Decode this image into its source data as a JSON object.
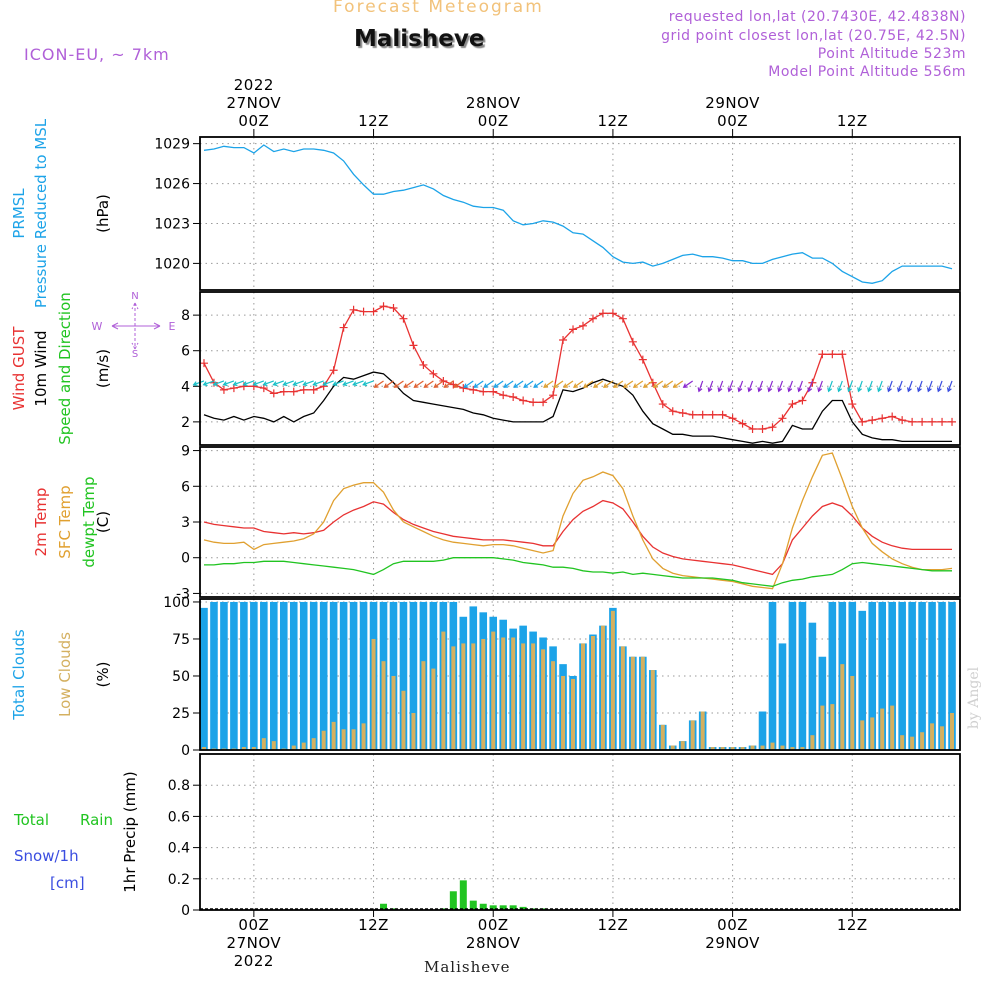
{
  "header": {
    "product": "Forecast Meteogram",
    "location": "Malisheve",
    "model": "ICON-EU, ~ 7km",
    "requested": "requested lon,lat (20.7430E, 42.4838N)",
    "grid_point": "grid point closest lon,lat (20.75E, 42.5N)",
    "point_altitude": "Point Altitude 523m",
    "model_altitude": "Model Point Altitude 556m",
    "credit": "by Angel",
    "footer_location": "Malisheve"
  },
  "time_axis": {
    "top_labels": [
      {
        "hour": 0,
        "lines": [
          "2022",
          "27NOV",
          "00Z"
        ]
      },
      {
        "hour": 12,
        "lines": [
          "12Z"
        ]
      },
      {
        "hour": 24,
        "lines": [
          "28NOV",
          "00Z"
        ]
      },
      {
        "hour": 36,
        "lines": [
          "12Z"
        ]
      },
      {
        "hour": 48,
        "lines": [
          "29NOV",
          "00Z"
        ]
      },
      {
        "hour": 60,
        "lines": [
          "12Z"
        ]
      }
    ],
    "bottom_labels": [
      {
        "hour": 0,
        "lines": [
          "00Z",
          "27NOV",
          "2022"
        ]
      },
      {
        "hour": 12,
        "lines": [
          "12Z"
        ]
      },
      {
        "hour": 24,
        "lines": [
          "00Z",
          "28NOV"
        ]
      },
      {
        "hour": 36,
        "lines": [
          "12Z"
        ]
      },
      {
        "hour": 48,
        "lines": [
          "00Z",
          "29NOV"
        ]
      },
      {
        "hour": 60,
        "lines": [
          "12Z"
        ]
      }
    ],
    "range_hours": [
      -5.4,
      70.8
    ]
  },
  "chart_data": [
    {
      "panel": "pressure",
      "type": "line",
      "side_labels": [
        "PRMSL",
        "Pressure Reduced to MSL"
      ],
      "ylabel": "(hPa)",
      "ylim": [
        1018,
        1029.5
      ],
      "yticks": [
        1020,
        1023,
        1026,
        1029
      ],
      "grid": true,
      "x": [
        -5,
        -4,
        -3,
        -2,
        -1,
        0,
        1,
        2,
        3,
        4,
        5,
        6,
        7,
        8,
        9,
        10,
        11,
        12,
        13,
        14,
        15,
        16,
        17,
        18,
        19,
        20,
        21,
        22,
        23,
        24,
        25,
        26,
        27,
        28,
        29,
        30,
        31,
        32,
        33,
        34,
        35,
        36,
        37,
        38,
        39,
        40,
        41,
        42,
        43,
        44,
        45,
        46,
        47,
        48,
        49,
        50,
        51,
        52,
        53,
        54,
        55,
        56,
        57,
        58,
        59,
        60,
        61,
        62,
        63,
        64,
        65,
        66,
        67,
        68,
        69,
        70
      ],
      "series": [
        {
          "color": "#1ca3e8",
          "values": [
            1028.5,
            1028.6,
            1028.8,
            1028.7,
            1028.7,
            1028.3,
            1028.9,
            1028.4,
            1028.6,
            1028.4,
            1028.6,
            1028.6,
            1028.5,
            1028.3,
            1027.7,
            1026.7,
            1025.9,
            1025.2,
            1025.2,
            1025.4,
            1025.5,
            1025.7,
            1025.9,
            1025.6,
            1025.1,
            1024.8,
            1024.6,
            1024.3,
            1024.2,
            1024.2,
            1024.0,
            1023.2,
            1022.9,
            1023.0,
            1023.2,
            1023.1,
            1022.8,
            1022.3,
            1022.2,
            1021.7,
            1021.2,
            1020.5,
            1020.1,
            1020.0,
            1020.1,
            1019.8,
            1020.0,
            1020.3,
            1020.6,
            1020.7,
            1020.5,
            1020.5,
            1020.4,
            1020.2,
            1020.2,
            1020.0,
            1020.0,
            1020.3,
            1020.5,
            1020.7,
            1020.8,
            1020.4,
            1020.4,
            1020.0,
            1019.4,
            1019.0,
            1018.6,
            1018.5,
            1018.7,
            1019.4,
            1019.8,
            1019.8,
            1019.8,
            1019.8,
            1019.8,
            1019.6
          ]
        }
      ]
    },
    {
      "panel": "wind",
      "type": "line",
      "side_labels": [
        "Wind GUST",
        "10m Wind",
        "Speed and Direction"
      ],
      "ylabel": "(m/s)",
      "compass": [
        "N",
        "W",
        "E",
        "S"
      ],
      "ylim": [
        0.7,
        9.3
      ],
      "yticks": [
        2,
        4,
        6,
        8
      ],
      "grid": true,
      "x": [
        -5,
        -4,
        -3,
        -2,
        -1,
        0,
        1,
        2,
        3,
        4,
        5,
        6,
        7,
        8,
        9,
        10,
        11,
        12,
        13,
        14,
        15,
        16,
        17,
        18,
        19,
        20,
        21,
        22,
        23,
        24,
        25,
        26,
        27,
        28,
        29,
        30,
        31,
        32,
        33,
        34,
        35,
        36,
        37,
        38,
        39,
        40,
        41,
        42,
        43,
        44,
        45,
        46,
        47,
        48,
        49,
        50,
        51,
        52,
        53,
        54,
        55,
        56,
        57,
        58,
        59,
        60,
        61,
        62,
        63,
        64,
        65,
        66,
        67,
        68,
        69,
        70
      ],
      "series": [
        {
          "kind": "gust",
          "color": "#e83232",
          "values": [
            5.3,
            4.2,
            3.8,
            3.9,
            4.0,
            4.0,
            3.9,
            3.6,
            3.7,
            3.7,
            3.8,
            3.8,
            4.0,
            4.9,
            7.3,
            8.3,
            8.2,
            8.2,
            8.5,
            8.4,
            7.8,
            6.3,
            5.2,
            4.7,
            4.3,
            4.1,
            3.9,
            3.8,
            3.7,
            3.7,
            3.5,
            3.4,
            3.2,
            3.1,
            3.1,
            3.5,
            6.6,
            7.2,
            7.4,
            7.8,
            8.1,
            8.1,
            7.8,
            6.5,
            5.5,
            4.2,
            3.0,
            2.6,
            2.5,
            2.4,
            2.4,
            2.4,
            2.4,
            2.2,
            1.9,
            1.6,
            1.6,
            1.7,
            2.2,
            3.0,
            3.2,
            4.2,
            5.8,
            5.8,
            5.8,
            3.0,
            2.0,
            2.1,
            2.2,
            2.3,
            2.1,
            2.0,
            2.0,
            2.0,
            2.0,
            2.0
          ]
        },
        {
          "kind": "wind10m",
          "color": "#000000",
          "values": [
            2.4,
            2.2,
            2.1,
            2.3,
            2.1,
            2.3,
            2.2,
            2.0,
            2.3,
            2.0,
            2.3,
            2.5,
            3.2,
            4.0,
            4.5,
            4.4,
            4.6,
            4.8,
            4.7,
            4.2,
            3.6,
            3.2,
            3.1,
            3.0,
            2.9,
            2.8,
            2.7,
            2.5,
            2.4,
            2.2,
            2.1,
            2.0,
            2.0,
            2.0,
            2.0,
            2.3,
            3.8,
            3.7,
            3.9,
            4.2,
            4.4,
            4.2,
            4.0,
            3.5,
            2.6,
            1.9,
            1.6,
            1.3,
            1.3,
            1.2,
            1.2,
            1.2,
            1.1,
            1.0,
            0.9,
            0.8,
            0.9,
            0.8,
            0.9,
            1.8,
            1.6,
            1.6,
            2.6,
            3.2,
            3.2,
            2.0,
            1.3,
            1.1,
            1.0,
            1.0,
            0.9,
            0.9,
            0.9,
            0.9,
            0.9,
            0.9
          ]
        }
      ],
      "wind_arrows": {
        "y_level": 4.3,
        "from_hour": -5,
        "to_hour": 70,
        "step_hours": 1
      }
    },
    {
      "panel": "temperature",
      "type": "line",
      "side_labels": [
        "2m Temp",
        "SFC Temp",
        "dewpt Temp"
      ],
      "ylabel": "(C)",
      "ylim": [
        -3.3,
        9.3
      ],
      "yticks": [
        -3,
        0,
        3,
        6,
        9
      ],
      "grid": true,
      "x": [
        -5,
        -4,
        -3,
        -2,
        -1,
        0,
        1,
        2,
        3,
        4,
        5,
        6,
        7,
        8,
        9,
        10,
        11,
        12,
        13,
        14,
        15,
        16,
        17,
        18,
        19,
        20,
        21,
        22,
        23,
        24,
        25,
        26,
        27,
        28,
        29,
        30,
        31,
        32,
        33,
        34,
        35,
        36,
        37,
        38,
        39,
        40,
        41,
        42,
        43,
        44,
        45,
        46,
        47,
        48,
        49,
        50,
        51,
        52,
        53,
        54,
        55,
        56,
        57,
        58,
        59,
        60,
        61,
        62,
        63,
        64,
        65,
        66,
        67,
        68,
        69,
        70
      ],
      "series": [
        {
          "name": "2m Temp",
          "color": "#e83232",
          "values": [
            3.0,
            2.8,
            2.7,
            2.6,
            2.5,
            2.5,
            2.2,
            2.1,
            2.0,
            2.1,
            2.0,
            2.1,
            2.3,
            3.0,
            3.6,
            4.0,
            4.3,
            4.7,
            4.5,
            3.8,
            3.2,
            2.8,
            2.5,
            2.2,
            2.0,
            1.8,
            1.7,
            1.6,
            1.5,
            1.5,
            1.5,
            1.4,
            1.3,
            1.2,
            1.0,
            1.0,
            2.2,
            3.2,
            3.9,
            4.3,
            4.8,
            4.6,
            4.1,
            3.0,
            1.8,
            0.9,
            0.4,
            0.1,
            -0.1,
            -0.2,
            -0.3,
            -0.4,
            -0.5,
            -0.6,
            -0.8,
            -1.0,
            -1.2,
            -1.4,
            -0.5,
            1.5,
            2.5,
            3.5,
            4.3,
            4.6,
            4.3,
            3.5,
            2.5,
            1.8,
            1.3,
            1.0,
            0.8,
            0.7,
            0.7,
            0.7,
            0.7,
            0.7
          ]
        },
        {
          "name": "SFC Temp",
          "color": "#e0a030",
          "values": [
            1.5,
            1.3,
            1.2,
            1.2,
            1.3,
            0.7,
            1.1,
            1.2,
            1.3,
            1.4,
            1.6,
            2.0,
            3.0,
            4.8,
            5.8,
            6.1,
            6.3,
            6.3,
            5.5,
            4.0,
            3.0,
            2.6,
            2.2,
            1.8,
            1.5,
            1.3,
            1.2,
            1.1,
            1.0,
            1.1,
            1.1,
            1.0,
            0.8,
            0.6,
            0.4,
            0.6,
            3.5,
            5.4,
            6.5,
            6.8,
            7.2,
            6.9,
            5.8,
            3.5,
            1.5,
            -0.1,
            -0.9,
            -1.3,
            -1.5,
            -1.6,
            -1.7,
            -1.8,
            -1.9,
            -2.0,
            -2.2,
            -2.4,
            -2.5,
            -2.6,
            -0.5,
            2.5,
            4.8,
            6.8,
            8.6,
            8.8,
            6.6,
            4.3,
            2.5,
            1.2,
            0.5,
            -0.1,
            -0.5,
            -0.8,
            -1.0,
            -1.0,
            -1.0,
            -0.9
          ]
        },
        {
          "name": "dewpt Temp",
          "color": "#21c421",
          "values": [
            -0.6,
            -0.6,
            -0.5,
            -0.5,
            -0.4,
            -0.4,
            -0.3,
            -0.3,
            -0.3,
            -0.4,
            -0.5,
            -0.6,
            -0.7,
            -0.8,
            -0.9,
            -1.0,
            -1.2,
            -1.4,
            -1.0,
            -0.5,
            -0.3,
            -0.3,
            -0.3,
            -0.3,
            -0.2,
            0.0,
            0.0,
            0.0,
            0.0,
            0.0,
            -0.1,
            -0.2,
            -0.4,
            -0.5,
            -0.6,
            -0.8,
            -0.8,
            -0.9,
            -1.1,
            -1.2,
            -1.2,
            -1.3,
            -1.2,
            -1.4,
            -1.3,
            -1.4,
            -1.5,
            -1.6,
            -1.7,
            -1.7,
            -1.7,
            -1.7,
            -1.8,
            -1.9,
            -2.1,
            -2.2,
            -2.3,
            -2.4,
            -2.1,
            -1.9,
            -1.8,
            -1.6,
            -1.5,
            -1.4,
            -1.0,
            -0.5,
            -0.4,
            -0.5,
            -0.6,
            -0.7,
            -0.8,
            -0.9,
            -1.0,
            -1.1,
            -1.1,
            -1.1
          ]
        }
      ]
    },
    {
      "panel": "clouds",
      "type": "bar",
      "side_labels": [
        "Total Clouds",
        "Low Clouds"
      ],
      "ylabel": "(%)",
      "ylim": [
        0,
        102
      ],
      "yticks": [
        0,
        25,
        50,
        75,
        100
      ],
      "grid": true,
      "x": [
        -5,
        -4,
        -3,
        -2,
        -1,
        0,
        1,
        2,
        3,
        4,
        5,
        6,
        7,
        8,
        9,
        10,
        11,
        12,
        13,
        14,
        15,
        16,
        17,
        18,
        19,
        20,
        21,
        22,
        23,
        24,
        25,
        26,
        27,
        28,
        29,
        30,
        31,
        32,
        33,
        34,
        35,
        36,
        37,
        38,
        39,
        40,
        41,
        42,
        43,
        44,
        45,
        46,
        47,
        48,
        49,
        50,
        51,
        52,
        53,
        54,
        55,
        56,
        57,
        58,
        59,
        60,
        61,
        62,
        63,
        64,
        65,
        66,
        67,
        68,
        69,
        70
      ],
      "series": [
        {
          "name": "Total Clouds",
          "color": "#1ca3e8",
          "values": [
            96,
            100,
            100,
            100,
            100,
            100,
            100,
            100,
            100,
            100,
            100,
            100,
            100,
            100,
            100,
            100,
            100,
            100,
            100,
            100,
            100,
            100,
            100,
            100,
            100,
            100,
            90,
            97,
            93,
            90,
            88,
            82,
            84,
            80,
            76,
            70,
            58,
            50,
            72,
            78,
            84,
            96,
            70,
            63,
            63,
            54,
            17,
            3,
            6,
            20,
            26,
            2,
            2,
            2,
            2,
            3,
            26,
            100,
            72,
            100,
            100,
            86,
            63,
            100,
            100,
            100,
            94,
            100,
            100,
            100,
            100,
            100,
            100,
            100,
            100,
            100
          ]
        },
        {
          "name": "Low Clouds",
          "color": "#d4b060",
          "values": [
            2,
            1,
            1,
            1,
            2,
            2,
            8,
            6,
            1,
            3,
            5,
            8,
            13,
            19,
            14,
            14,
            18,
            75,
            60,
            50,
            40,
            25,
            60,
            55,
            80,
            70,
            72,
            72,
            75,
            80,
            76,
            76,
            72,
            72,
            68,
            60,
            50,
            48,
            72,
            77,
            84,
            94,
            70,
            63,
            63,
            54,
            17,
            3,
            6,
            20,
            26,
            2,
            2,
            2,
            2,
            3,
            3,
            5,
            3,
            2,
            2,
            10,
            30,
            31,
            58,
            50,
            20,
            22,
            28,
            30,
            10,
            9,
            12,
            18,
            16,
            25
          ]
        }
      ]
    },
    {
      "panel": "precip",
      "type": "bar",
      "side_labels": [
        "Total",
        "Rain",
        "Snow/1h",
        "[cm]"
      ],
      "ylabel": "1hr Precip (mm)",
      "ylim": [
        0,
        1.0
      ],
      "yticks": [
        0,
        0.2,
        0.4,
        0.6,
        0.8
      ],
      "grid": true,
      "x": [
        13,
        14,
        19,
        20,
        21,
        22,
        23,
        24,
        25,
        26,
        27,
        28,
        29
      ],
      "series": [
        {
          "name": "Total",
          "color": "#21c421",
          "values": [
            0.04,
            0.01,
            0.01,
            0.12,
            0.19,
            0.06,
            0.04,
            0.03,
            0.03,
            0.03,
            0.02,
            0.01,
            0.01
          ]
        }
      ]
    }
  ]
}
